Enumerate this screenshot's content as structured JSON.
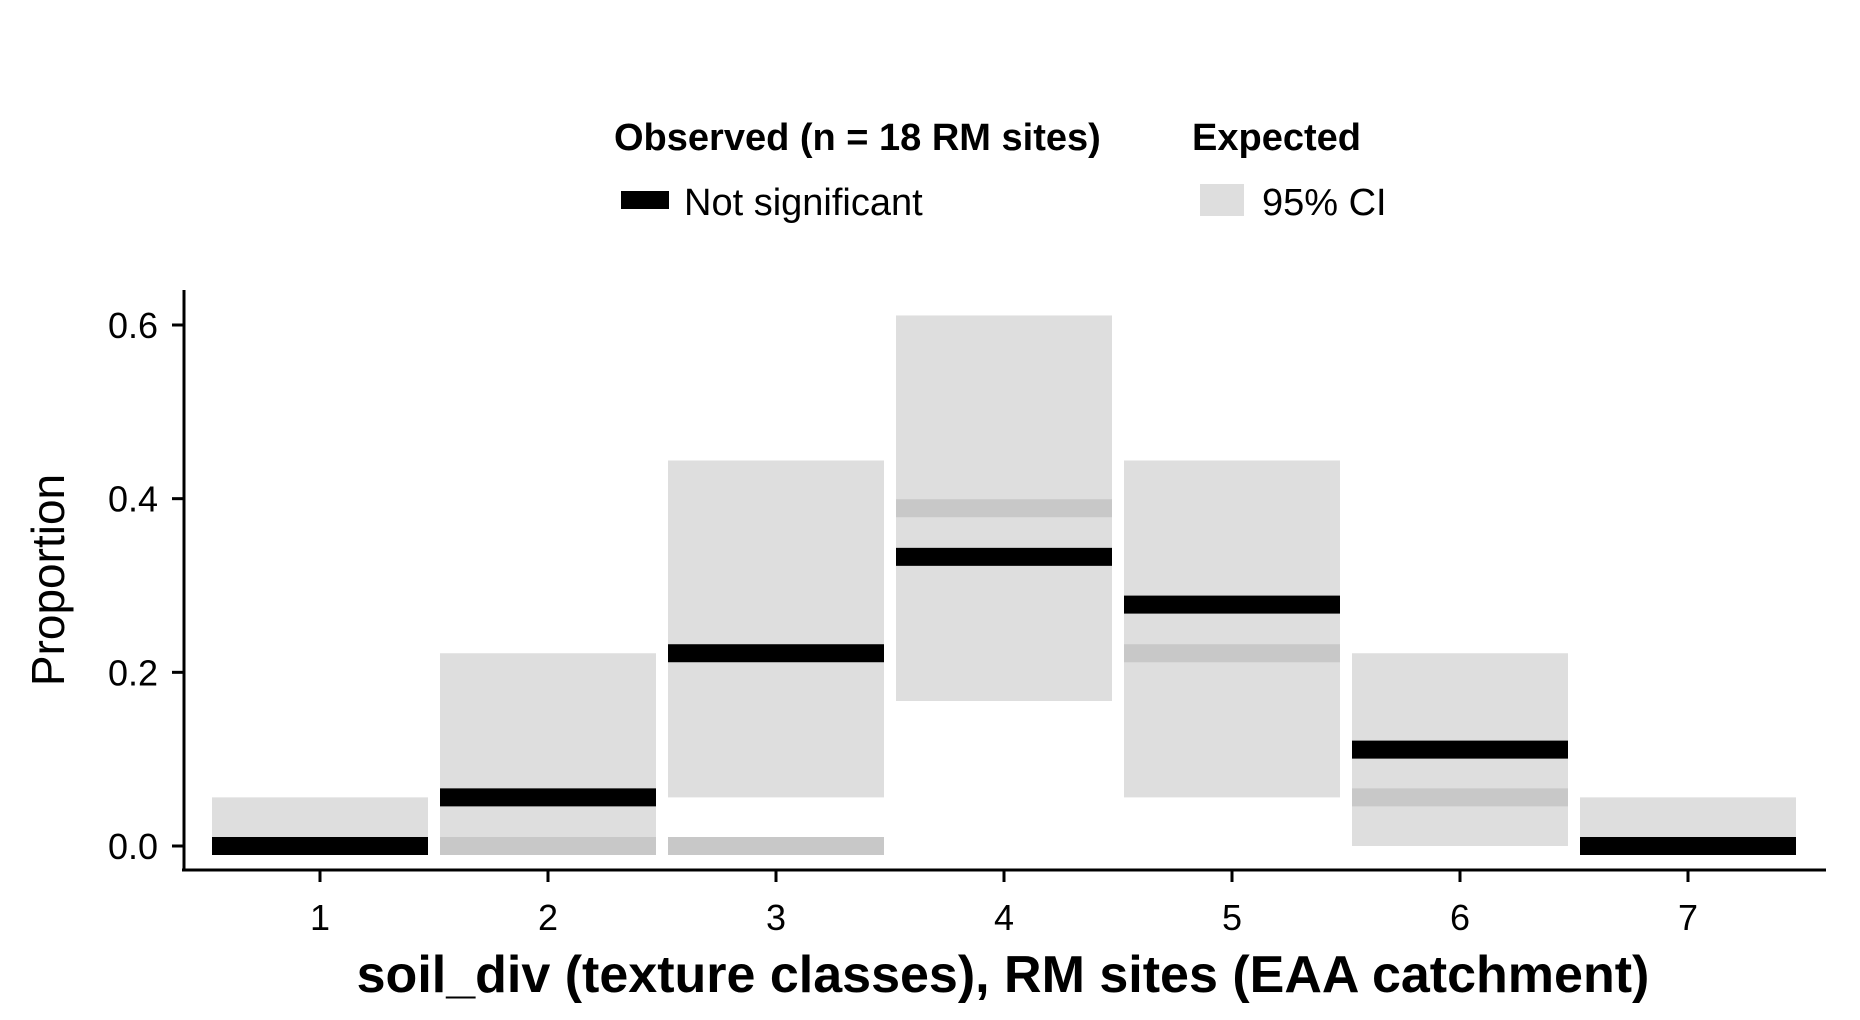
{
  "chart_data": {
    "type": "bar",
    "title": "",
    "xlabel": "soil_div (texture classes), RM sites (EAA catchment)",
    "ylabel": "Proportion",
    "categories": [
      "1",
      "2",
      "3",
      "4",
      "5",
      "6",
      "7"
    ],
    "ylim": [
      -0.028,
      0.64
    ],
    "yticks": [
      0.0,
      0.2,
      0.4,
      0.6
    ],
    "ytick_labels": [
      "0.0",
      "0.2",
      "0.4",
      "0.6"
    ],
    "grid": false,
    "legend_position": "top",
    "legend": {
      "observed_title": "Observed (n = 18 RM sites)",
      "observed_label": "Not significant",
      "expected_title": "Expected",
      "expected_label": "95% CI"
    },
    "series": [
      {
        "name": "Not significant",
        "role": "observed",
        "values": [
          0.0,
          0.056,
          0.222,
          0.333,
          0.278,
          0.111,
          0.0
        ]
      },
      {
        "role": "expected",
        "values": [
          0.0,
          0.0,
          0.0,
          0.389,
          0.222,
          0.056,
          0.0
        ]
      }
    ],
    "ci_low": [
      0.0,
      0.0,
      0.056,
      0.167,
      0.056,
      0.0,
      0.0
    ],
    "ci_high": [
      0.056,
      0.222,
      0.444,
      0.611,
      0.444,
      0.222,
      0.056
    ],
    "colors": {
      "observed": "#000000",
      "expected": "#c8c8c8",
      "ci": "#dedede",
      "axis": "#000000"
    }
  }
}
